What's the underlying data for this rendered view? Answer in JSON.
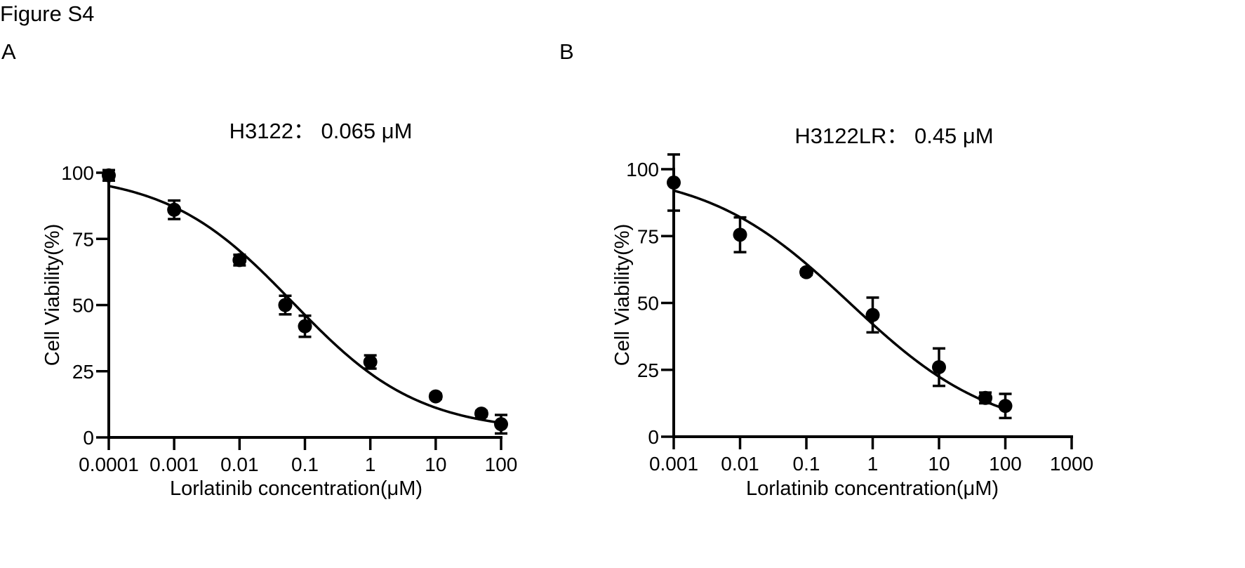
{
  "figure": {
    "title": "Figure S4",
    "panel_labels": [
      "A",
      "B"
    ]
  },
  "chart_data": [
    {
      "type": "scatter",
      "panel": "A",
      "title": "H3122： 0.065 μM",
      "xlabel": "Lorlatinib concentration(μM)",
      "ylabel": "Cell Viability(%)",
      "xscale": "log",
      "xlim": [
        0.0001,
        100
      ],
      "ylim": [
        0,
        100
      ],
      "xticks": [
        0.0001,
        0.001,
        0.01,
        0.1,
        1,
        10,
        100
      ],
      "xtick_labels": [
        "0.0001",
        "0.001",
        "0.01",
        "0.1",
        "1",
        "10",
        "100"
      ],
      "yticks": [
        0,
        25,
        50,
        75,
        100
      ],
      "ytick_labels": [
        "0",
        "25",
        "50",
        "75",
        "100"
      ],
      "grid": false,
      "ic50": 0.065,
      "points": [
        {
          "x": 0.0001,
          "y": 99,
          "err": 2
        },
        {
          "x": 0.001,
          "y": 86,
          "err": 3.5
        },
        {
          "x": 0.01,
          "y": 67,
          "err": 2
        },
        {
          "x": 0.05,
          "y": 50,
          "err": 3.5
        },
        {
          "x": 0.1,
          "y": 42,
          "err": 4
        },
        {
          "x": 1,
          "y": 28.5,
          "err": 2.5
        },
        {
          "x": 10,
          "y": 15.5,
          "err": 1
        },
        {
          "x": 50,
          "y": 9,
          "err": 1
        },
        {
          "x": 100,
          "y": 5,
          "err": 3.5
        }
      ],
      "fit": {
        "model": "4PL",
        "bottom": 2,
        "top": 100,
        "ec50": 0.065,
        "hill": 0.45
      }
    },
    {
      "type": "scatter",
      "panel": "B",
      "title": "H3122LR： 0.45 μM",
      "xlabel": "Lorlatinib concentration(μM)",
      "ylabel": "Cell Viability(%)",
      "xscale": "log",
      "xlim": [
        0.001,
        1000
      ],
      "ylim": [
        0,
        100
      ],
      "xticks": [
        0.001,
        0.01,
        0.1,
        1,
        10,
        100,
        1000
      ],
      "xtick_labels": [
        "0.001",
        "0.01",
        "0.1",
        "1",
        "10",
        "100",
        "1000"
      ],
      "yticks": [
        0,
        25,
        50,
        75,
        100
      ],
      "ytick_labels": [
        "0",
        "25",
        "50",
        "75",
        "100"
      ],
      "grid": false,
      "ic50": 0.45,
      "points": [
        {
          "x": 0.001,
          "y": 95,
          "err": 10.5
        },
        {
          "x": 0.01,
          "y": 75.5,
          "err": 6.5
        },
        {
          "x": 0.1,
          "y": 61.5,
          "err": 1
        },
        {
          "x": 1,
          "y": 45.5,
          "err": 6.5
        },
        {
          "x": 10,
          "y": 26,
          "err": 7
        },
        {
          "x": 50,
          "y": 14.5,
          "err": 2
        },
        {
          "x": 100,
          "y": 11.5,
          "err": 4.5
        }
      ],
      "fit": {
        "model": "4PL",
        "bottom": 0,
        "top": 100,
        "ec50": 0.45,
        "hill": 0.4,
        "xmax": 100
      }
    }
  ]
}
